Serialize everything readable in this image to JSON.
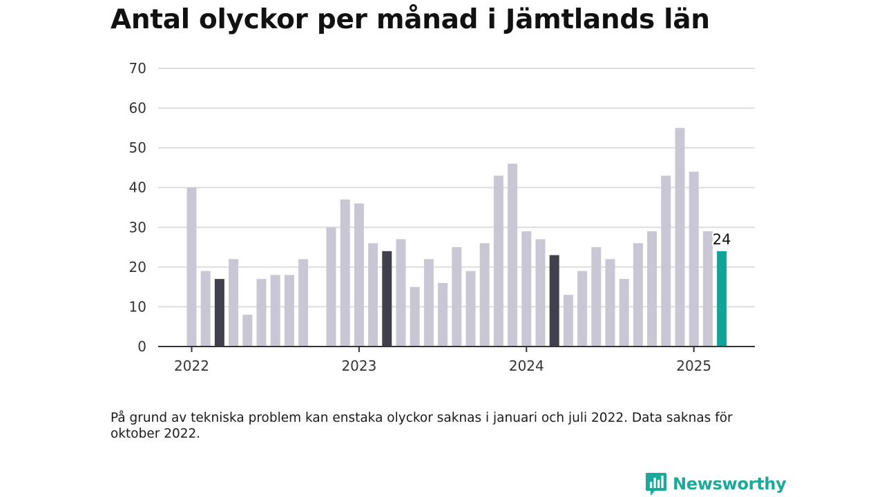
{
  "title": "Antal olyckor per månad i Jämtlands län",
  "note": "På grund av tekniska problem kan enstaka olyckor saknas i januari och juli 2022. Data saknas för oktober 2022.",
  "brand": {
    "name": "Newsworthy",
    "icon": "newsworthy-logo-icon"
  },
  "colors": {
    "default": "#c8c7d3",
    "highlight": "#41404d",
    "latest": "#0fa39a",
    "brand": "#1aa99a"
  },
  "chart_data": {
    "type": "bar",
    "title": "Antal olyckor per månad i Jämtlands län",
    "xlabel": "",
    "ylabel": "",
    "ylim": [
      0,
      70
    ],
    "y_ticks": [
      0,
      10,
      20,
      30,
      40,
      50,
      60,
      70
    ],
    "x_tick_labels": [
      "2022",
      "2023",
      "2024",
      "2025"
    ],
    "grid": true,
    "categories": [
      "2022-01",
      "2022-02",
      "2022-03",
      "2022-04",
      "2022-05",
      "2022-06",
      "2022-07",
      "2022-08",
      "2022-09",
      "2022-10",
      "2022-11",
      "2022-12",
      "2023-01",
      "2023-02",
      "2023-03",
      "2023-04",
      "2023-05",
      "2023-06",
      "2023-07",
      "2023-08",
      "2023-09",
      "2023-10",
      "2023-11",
      "2023-12",
      "2024-01",
      "2024-02",
      "2024-03",
      "2024-04",
      "2024-05",
      "2024-06",
      "2024-07",
      "2024-08",
      "2024-09",
      "2024-10",
      "2024-11",
      "2024-12",
      "2025-01",
      "2025-02",
      "2025-03"
    ],
    "values": [
      40,
      19,
      17,
      22,
      8,
      17,
      18,
      18,
      22,
      null,
      30,
      37,
      36,
      26,
      24,
      27,
      15,
      22,
      16,
      25,
      19,
      26,
      43,
      46,
      29,
      27,
      23,
      13,
      19,
      25,
      22,
      17,
      26,
      29,
      43,
      55,
      44,
      29,
      24
    ],
    "highlight_categories": [
      "2022-03",
      "2023-03",
      "2024-03"
    ],
    "latest_category": "2025-03",
    "data_labels": [
      {
        "category": "2025-03",
        "text": "24"
      }
    ]
  }
}
